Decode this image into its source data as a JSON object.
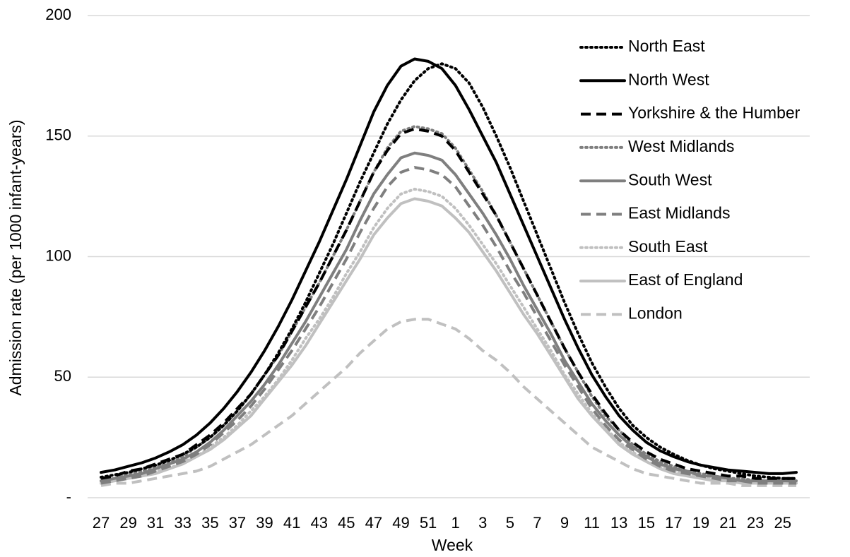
{
  "chart_data": {
    "type": "line",
    "x_label": "Week",
    "y_label": "Admission rate (per 1000 infant-years)",
    "categories": [
      "27",
      null,
      "29",
      null,
      "31",
      null,
      "33",
      null,
      "35",
      null,
      "37",
      null,
      "39",
      null,
      "41",
      null,
      "43",
      null,
      "45",
      null,
      "47",
      null,
      "49",
      null,
      "51",
      null,
      "1",
      null,
      "3",
      null,
      "5",
      null,
      "7",
      null,
      "9",
      null,
      "11",
      null,
      "13",
      null,
      "15",
      null,
      "17",
      null,
      "19",
      null,
      "21",
      null,
      "23",
      null,
      "25",
      null
    ],
    "ylim": [
      0,
      200
    ],
    "yticks": [
      {
        "value": 0,
        "label": "-"
      },
      50,
      100,
      150,
      200
    ],
    "grid": true,
    "legend": "top-right",
    "series": [
      {
        "name": "North East",
        "color": "#000000",
        "style": "dotted",
        "values": [
          8.5,
          9.5,
          10.5,
          12,
          13.5,
          15.5,
          18,
          21,
          25,
          30,
          36,
          43,
          51,
          60,
          70,
          81,
          93,
          105,
          118,
          131,
          143,
          155,
          165,
          173,
          178,
          180,
          178,
          172,
          162,
          150,
          137,
          123,
          109,
          95,
          81,
          68,
          56,
          46,
          37,
          30,
          25,
          21,
          18,
          15.5,
          13.5,
          12,
          11,
          10,
          9,
          8.5,
          8,
          8
        ]
      },
      {
        "name": "North West",
        "color": "#000000",
        "style": "solid",
        "values": [
          10.5,
          11.5,
          13,
          14.5,
          16.5,
          19,
          22,
          26,
          31,
          37,
          44,
          52,
          61,
          71,
          82,
          94,
          106,
          119,
          132,
          146,
          160,
          171,
          179,
          182,
          181,
          178,
          171,
          161,
          150,
          139,
          126,
          113,
          100,
          87,
          74,
          62,
          51,
          42,
          34,
          28,
          23,
          19.5,
          17,
          15,
          13.5,
          12.5,
          11.5,
          11,
          10.5,
          10,
          10,
          10.5
        ]
      },
      {
        "name": "Yorkshire & the Humber",
        "color": "#000000",
        "style": "dashed",
        "values": [
          8,
          9,
          11,
          12,
          14,
          16,
          18,
          22,
          26,
          31,
          37,
          43,
          51,
          59,
          69,
          79,
          89,
          100,
          111,
          123,
          135,
          144,
          151,
          153,
          152,
          150,
          144,
          135,
          126,
          117,
          106,
          95,
          84,
          73,
          62,
          52,
          43,
          35,
          28,
          23,
          19,
          16,
          14,
          12,
          11,
          10,
          9,
          9,
          8,
          8,
          8,
          8
        ]
      },
      {
        "name": "West Midlands",
        "color": "#7f7f7f",
        "style": "dotted",
        "values": [
          7,
          8,
          10,
          11,
          13,
          15,
          17,
          21,
          25,
          30,
          36,
          43,
          51,
          59,
          69,
          79,
          89,
          100,
          111,
          123,
          135,
          145,
          152,
          154,
          153,
          151,
          145,
          136,
          127,
          117,
          106,
          95,
          84,
          73,
          62,
          52,
          42,
          34,
          28,
          22,
          18,
          15,
          13,
          11,
          10,
          9,
          8,
          8,
          7,
          7,
          7,
          7
        ]
      },
      {
        "name": "South West",
        "color": "#7f7f7f",
        "style": "solid",
        "values": [
          7,
          8,
          9,
          10,
          12,
          14,
          16,
          19,
          23,
          28,
          34,
          40,
          47,
          55,
          64,
          73,
          83,
          93,
          103,
          115,
          126,
          134,
          141,
          143,
          142,
          140,
          134,
          126,
          118,
          109,
          99,
          88,
          78,
          68,
          57,
          48,
          39,
          32,
          26,
          21,
          17,
          14,
          12,
          11,
          9,
          9,
          8,
          7,
          7,
          7,
          7,
          7
        ]
      },
      {
        "name": "East Midlands",
        "color": "#7f7f7f",
        "style": "dashed",
        "values": [
          6,
          7,
          8,
          9,
          11,
          13,
          15,
          18,
          22,
          27,
          32,
          38,
          45,
          53,
          61,
          70,
          79,
          89,
          99,
          110,
          120,
          129,
          135,
          137,
          136,
          134,
          129,
          121,
          113,
          104,
          94,
          85,
          75,
          65,
          55,
          46,
          37,
          30,
          24,
          20,
          16,
          13,
          11,
          10,
          9,
          8,
          7,
          7,
          6,
          6,
          6,
          6
        ]
      },
      {
        "name": "South East",
        "color": "#c0c0c0",
        "style": "dotted",
        "values": [
          6,
          7,
          8,
          9,
          11,
          12,
          15,
          17,
          21,
          25,
          30,
          36,
          42,
          49,
          57,
          66,
          74,
          83,
          93,
          102,
          112,
          120,
          126,
          128,
          127,
          125,
          120,
          113,
          105,
          97,
          88,
          79,
          70,
          61,
          51,
          43,
          35,
          29,
          23,
          19,
          15,
          13,
          11,
          10,
          9,
          8,
          7,
          7,
          6,
          6,
          6,
          6
        ]
      },
      {
        "name": "East of England",
        "color": "#c0c0c0",
        "style": "solid",
        "values": [
          6,
          7,
          8,
          9,
          10,
          12,
          14,
          17,
          20,
          24,
          29,
          34,
          41,
          48,
          55,
          63,
          72,
          81,
          90,
          99,
          109,
          116,
          122,
          124,
          123,
          121,
          116,
          110,
          102,
          94,
          85,
          76,
          68,
          59,
          50,
          41,
          34,
          28,
          22,
          18,
          15,
          12,
          10,
          9,
          8,
          7,
          7,
          6,
          6,
          6,
          6,
          6
        ]
      },
      {
        "name": "London",
        "color": "#c0c0c0",
        "style": "dashed",
        "values": [
          5,
          6,
          6,
          7,
          8,
          9,
          10,
          11,
          13,
          16,
          19,
          22,
          26,
          30,
          34,
          39,
          44,
          49,
          54,
          60,
          65,
          70,
          73,
          74,
          74,
          72,
          70,
          66,
          61,
          57,
          52,
          46,
          41,
          36,
          31,
          26,
          21,
          18,
          15,
          12,
          10,
          9,
          8,
          7,
          6,
          6,
          6,
          5,
          5,
          5,
          5,
          5
        ]
      }
    ]
  }
}
